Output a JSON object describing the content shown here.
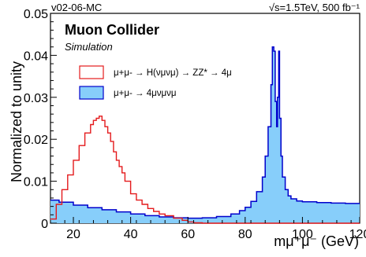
{
  "header": {
    "left_label": "v02-06-MC",
    "right_label": "√s=1.5TeV, 500 fb⁻¹"
  },
  "annotations": {
    "collider": "Muon Collider",
    "simulation": "Simulation"
  },
  "chart_data": {
    "type": "line",
    "xlabel": "mμ⁺μ⁻ (GeV)",
    "ylabel": "Normalized to unity",
    "xlim": [
      12,
      120
    ],
    "ylim": [
      0,
      0.05
    ],
    "xticks": [
      "20",
      "40",
      "60",
      "80",
      "100",
      "120"
    ],
    "xtick_values": [
      20,
      40,
      60,
      80,
      100,
      120
    ],
    "yticks": [
      "0",
      "0.01",
      "0.02",
      "0.03",
      "0.04",
      "0.05"
    ],
    "ytick_values": [
      0,
      0.01,
      0.02,
      0.03,
      0.04,
      0.05
    ],
    "grid": false,
    "legend_position": "top-left",
    "series": [
      {
        "name": "μ+μ- → H(νμνμ) → ZZ* → 4μ",
        "style": "red-outline-step",
        "color": "#e41a1c",
        "x": [
          12,
          14,
          16,
          18,
          20,
          22,
          24,
          26,
          27,
          28,
          29,
          30,
          31,
          32,
          33,
          34,
          35,
          36,
          37,
          38,
          40,
          42,
          44,
          46,
          48,
          50,
          52,
          55,
          58,
          60,
          62,
          65,
          120
        ],
        "y": [
          0.001,
          0.0045,
          0.008,
          0.0115,
          0.015,
          0.0185,
          0.0215,
          0.0235,
          0.0245,
          0.025,
          0.0255,
          0.0245,
          0.023,
          0.0215,
          0.0195,
          0.017,
          0.015,
          0.0135,
          0.012,
          0.01,
          0.007,
          0.0055,
          0.0045,
          0.0035,
          0.0028,
          0.0022,
          0.0018,
          0.0012,
          0.0007,
          0.0003,
          0.0001,
          0.0,
          0.0
        ]
      },
      {
        "name": "μ+μ- → 4μνμνμ",
        "style": "blue-filled-step",
        "color": "#0000cc",
        "fill": "#87cefa",
        "x": [
          12,
          15,
          20,
          25,
          30,
          35,
          40,
          45,
          50,
          55,
          60,
          65,
          70,
          75,
          78,
          80,
          82,
          84,
          86,
          87,
          88,
          89,
          89.5,
          90,
          90.5,
          91,
          91.3,
          91.7,
          92,
          92.5,
          93,
          94,
          95,
          96,
          98,
          100,
          105,
          110,
          115,
          120
        ],
        "y": [
          0.0055,
          0.005,
          0.0043,
          0.0037,
          0.0032,
          0.0027,
          0.0022,
          0.0018,
          0.0015,
          0.0013,
          0.0012,
          0.0013,
          0.0016,
          0.0022,
          0.003,
          0.0038,
          0.0052,
          0.0075,
          0.011,
          0.016,
          0.023,
          0.033,
          0.042,
          0.041,
          0.029,
          0.023,
          0.03,
          0.041,
          0.025,
          0.016,
          0.011,
          0.008,
          0.0065,
          0.0058,
          0.0053,
          0.0051,
          0.0049,
          0.0048,
          0.0047,
          0.0047
        ]
      }
    ]
  }
}
